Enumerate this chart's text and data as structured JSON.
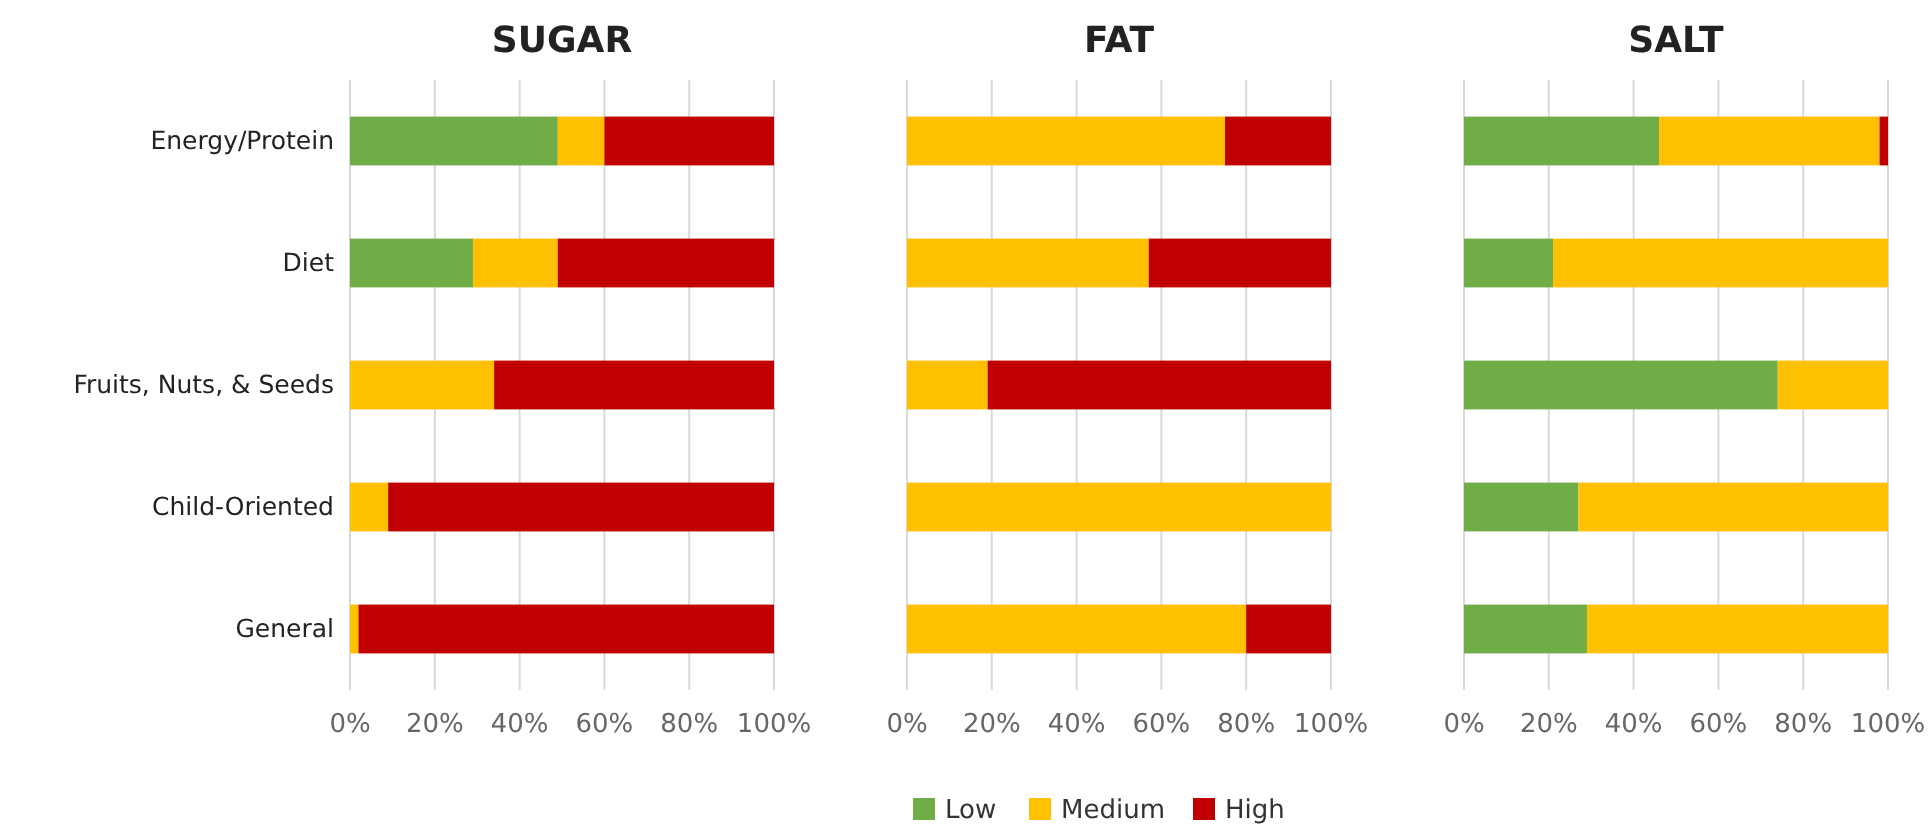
{
  "chart_data": [
    {
      "type": "bar",
      "orientation": "horizontal",
      "stacked": true,
      "title": "SUGAR",
      "categories": [
        "Energy/Protein",
        "Diet",
        "Fruits, Nuts, & Seeds",
        "Child-Oriented",
        "General"
      ],
      "series": [
        {
          "color": "#70ad47",
          "values": [
            49,
            29,
            0,
            0,
            0
          ]
        },
        {
          "color": "#ffc000",
          "values": [
            11,
            20,
            34,
            9,
            2
          ]
        },
        {
          "color": "#c00000",
          "values": [
            40,
            51,
            66,
            91,
            98
          ]
        }
      ],
      "xlim": [
        0,
        100
      ],
      "xticks": [
        {
          "value": 0,
          "label": "0%"
        },
        {
          "value": 20,
          "label": "20%"
        },
        {
          "value": 40,
          "label": "40%"
        },
        {
          "value": 60,
          "label": "60%"
        },
        {
          "value": 80,
          "label": "80%"
        },
        {
          "value": 100,
          "label": "100%"
        }
      ],
      "grid": "x"
    },
    {
      "type": "bar",
      "orientation": "horizontal",
      "stacked": true,
      "title": "FAT",
      "categories": [
        null,
        null,
        null,
        null,
        null
      ],
      "series": [
        {
          "name": "Low",
          "color": "#70ad47",
          "values": [
            0,
            0,
            0,
            0,
            0
          ]
        },
        {
          "name": "Medium",
          "color": "#ffc000",
          "values": [
            75,
            57,
            19,
            100,
            80
          ]
        },
        {
          "name": "High",
          "color": "#c00000",
          "values": [
            25,
            43,
            81,
            0,
            20
          ]
        }
      ],
      "xlim": [
        0,
        100
      ],
      "xticks": [
        {
          "value": 0,
          "label": "0%"
        },
        {
          "value": 20,
          "label": "20%"
        },
        {
          "value": 40,
          "label": "40%"
        },
        {
          "value": 60,
          "label": "60%"
        },
        {
          "value": 80,
          "label": "80%"
        },
        {
          "value": 100,
          "label": "100%"
        }
      ],
      "grid": "x",
      "tick_labels": "x",
      "legend": "bottom"
    },
    {
      "type": "bar",
      "orientation": "horizontal",
      "stacked": true,
      "title": "SALT",
      "categories": [
        null,
        null,
        null,
        null,
        null
      ],
      "series": [
        {
          "color": "#70ad47",
          "values": [
            46,
            21,
            74,
            27,
            29
          ]
        },
        {
          "color": "#ffc000",
          "values": [
            52,
            79,
            26,
            73,
            71
          ]
        },
        {
          "color": "#c00000",
          "values": [
            2,
            0,
            0,
            0,
            0
          ]
        }
      ],
      "xlim": [
        0,
        100
      ],
      "xticks": [
        {
          "value": 0,
          "label": "0%"
        },
        {
          "value": 20,
          "label": "20%"
        },
        {
          "value": 40,
          "label": "40%"
        },
        {
          "value": 60,
          "label": "60%"
        },
        {
          "value": 80,
          "label": "80%"
        },
        {
          "value": 100,
          "label": "100%"
        }
      ],
      "grid": "x",
      "tick_labels": "x"
    }
  ]
}
